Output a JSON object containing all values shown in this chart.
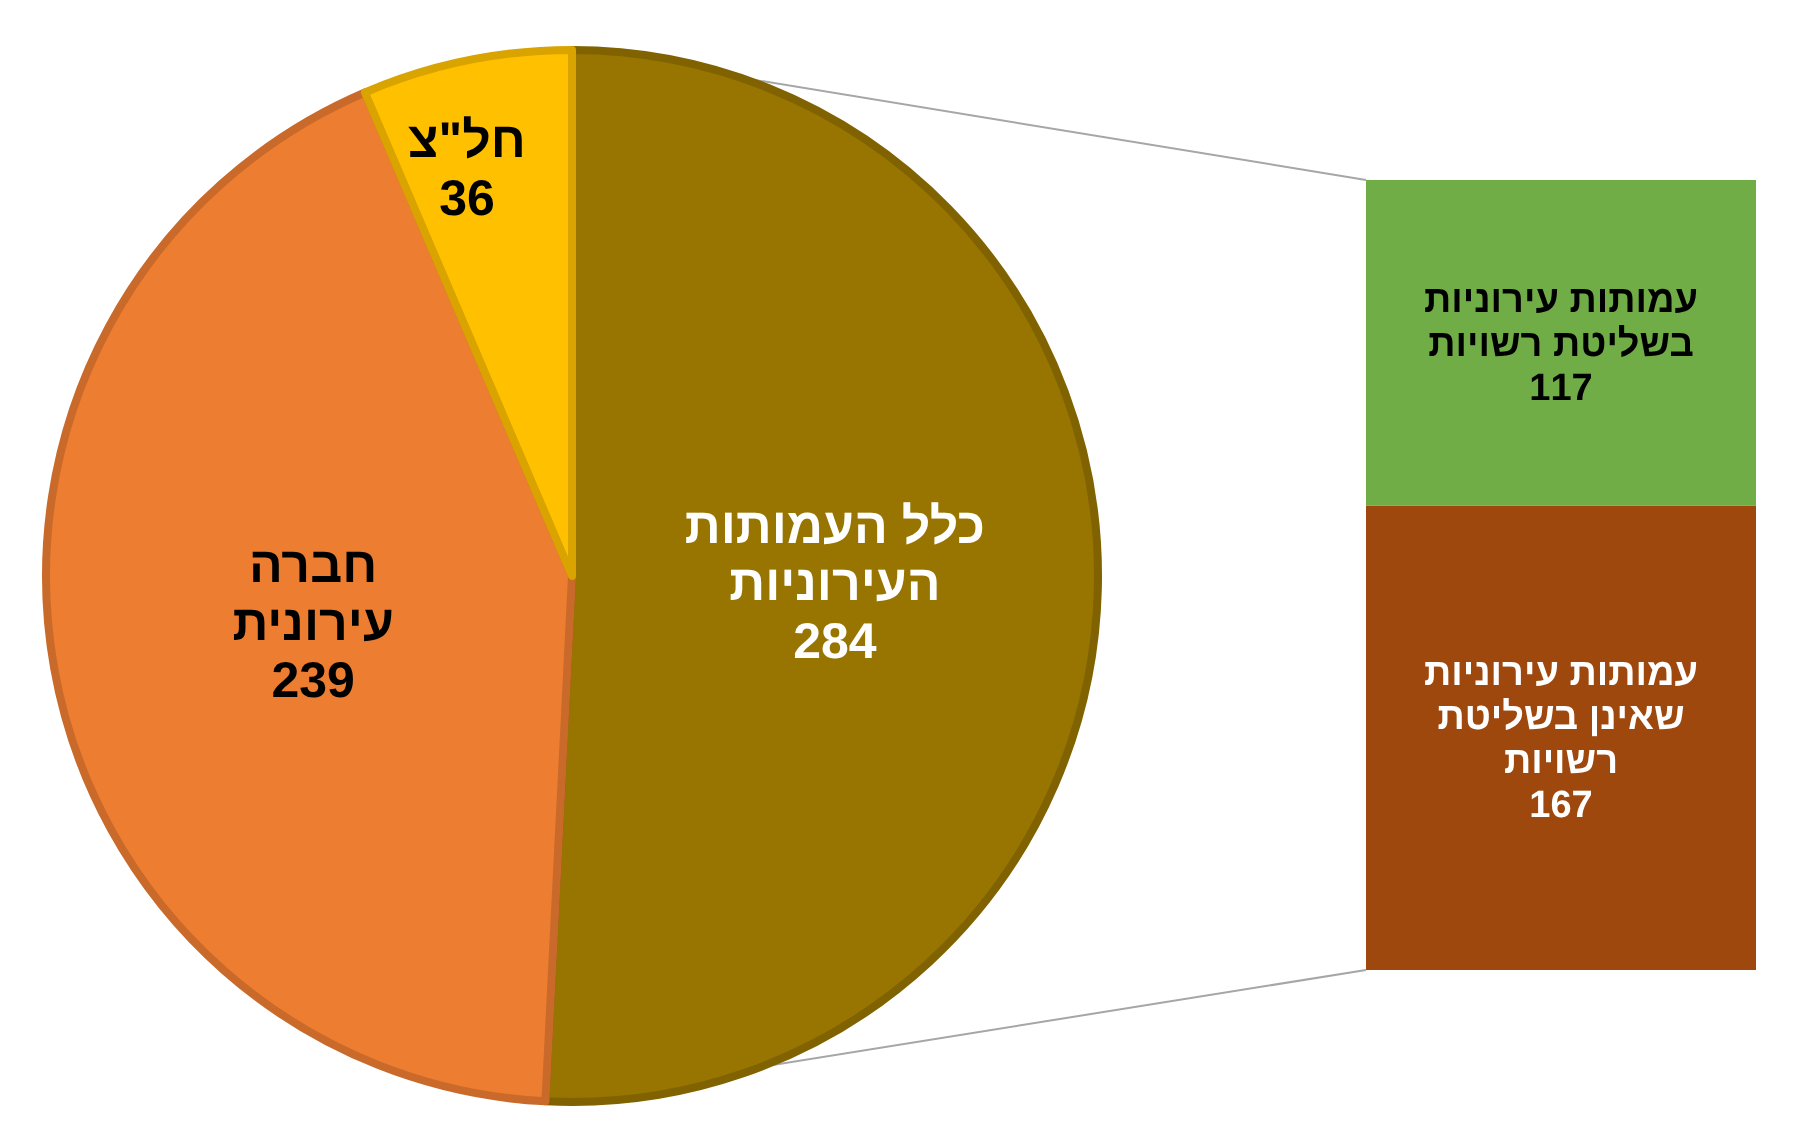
{
  "chart_data": [
    {
      "type": "pie",
      "categories": [
        "כלל העמותות העירוניות",
        "חברה עירונית",
        "חל\"צ"
      ],
      "values": [
        284,
        239,
        36
      ],
      "colors": [
        "#977500",
        "#ED7D31",
        "#FFC000"
      ],
      "data_labels": true
    },
    {
      "type": "bar",
      "stacked": true,
      "categories": [
        null
      ],
      "data_labels": true,
      "series": [
        {
          "name": "עמותות עירוניות שאינן בשליטת רשויות",
          "color": "#9E480E",
          "values": [
            167
          ]
        },
        {
          "name": "עמותות עירוניות בשליטת רשויות",
          "color": "#70AD47",
          "values": [
            117
          ]
        }
      ]
    }
  ]
}
